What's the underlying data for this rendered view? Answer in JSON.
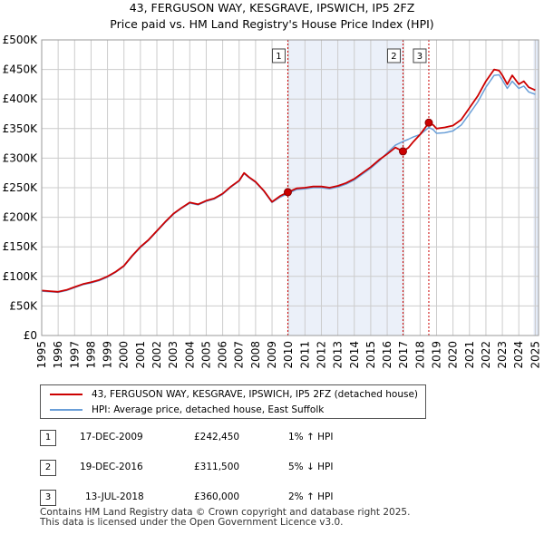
{
  "title": {
    "line1": "43, FERGUSON WAY, KESGRAVE, IPSWICH, IP5 2FZ",
    "line2": "Price paid vs. HM Land Registry's House Price Index (HPI)"
  },
  "colors": {
    "property": "#cc0000",
    "hpi": "#6a9fd8",
    "shade": "#dde6f5",
    "grid": "#cccccc",
    "marker": "#cc0000"
  },
  "chart_data": {
    "type": "line",
    "title": "Price paid vs. HM Land Registry's House Price Index (HPI)",
    "ylabel": "",
    "xlabel": "",
    "xlim": [
      1995,
      2025.2
    ],
    "ylim": [
      0,
      500000
    ],
    "yticks": [
      {
        "v": 0,
        "label": "£0"
      },
      {
        "v": 50000,
        "label": "£50K"
      },
      {
        "v": 100000,
        "label": "£100K"
      },
      {
        "v": 150000,
        "label": "£150K"
      },
      {
        "v": 200000,
        "label": "£200K"
      },
      {
        "v": 250000,
        "label": "£250K"
      },
      {
        "v": 300000,
        "label": "£300K"
      },
      {
        "v": 350000,
        "label": "£350K"
      },
      {
        "v": 400000,
        "label": "£400K"
      },
      {
        "v": 450000,
        "label": "£450K"
      },
      {
        "v": 500000,
        "label": "£500K"
      }
    ],
    "xticks": [
      "1995",
      "1996",
      "1997",
      "1998",
      "1999",
      "2000",
      "2001",
      "2002",
      "2003",
      "2004",
      "2005",
      "2006",
      "2007",
      "2008",
      "2009",
      "2010",
      "2011",
      "2012",
      "2013",
      "2014",
      "2015",
      "2016",
      "2017",
      "2018",
      "2019",
      "2020",
      "2021",
      "2022",
      "2023",
      "2024",
      "2025"
    ],
    "series": [
      {
        "name": "43, FERGUSON WAY, KESGRAVE, IPSWICH, IP5 2FZ (detached house)",
        "color": "#cc0000",
        "x": [
          1995.0,
          1995.5,
          1996.0,
          1996.5,
          1997.0,
          1997.5,
          1998.0,
          1998.5,
          1999.0,
          1999.5,
          2000.0,
          2000.5,
          2001.0,
          2001.5,
          2002.0,
          2002.5,
          2003.0,
          2003.5,
          2004.0,
          2004.5,
          2005.0,
          2005.5,
          2006.0,
          2006.5,
          2007.0,
          2007.3,
          2007.6,
          2008.0,
          2008.5,
          2009.0,
          2009.5,
          2009.96,
          2010.5,
          2011.0,
          2011.5,
          2012.0,
          2012.5,
          2013.0,
          2013.5,
          2014.0,
          2014.5,
          2015.0,
          2015.5,
          2016.0,
          2016.5,
          2016.96,
          2017.3,
          2017.6,
          2018.0,
          2018.53,
          2018.8,
          2019.0,
          2019.5,
          2020.0,
          2020.5,
          2021.0,
          2021.5,
          2022.0,
          2022.5,
          2022.8,
          2023.0,
          2023.3,
          2023.6,
          2024.0,
          2024.3,
          2024.6,
          2025.0
        ],
        "y": [
          76000,
          75000,
          74000,
          77000,
          82000,
          87000,
          90000,
          94000,
          100000,
          108000,
          118000,
          135000,
          150000,
          162000,
          177000,
          192000,
          206000,
          216000,
          225000,
          222000,
          228000,
          232000,
          240000,
          252000,
          262000,
          275000,
          268000,
          260000,
          245000,
          226000,
          236000,
          242450,
          249000,
          250000,
          252000,
          252000,
          250000,
          253000,
          258000,
          265000,
          275000,
          285000,
          297000,
          307000,
          318000,
          311500,
          318000,
          328000,
          340000,
          360000,
          356000,
          350000,
          352000,
          355000,
          365000,
          385000,
          405000,
          430000,
          450000,
          448000,
          440000,
          425000,
          440000,
          425000,
          430000,
          420000,
          415000
        ]
      },
      {
        "name": "HPI: Average price, detached house, East Suffolk",
        "color": "#6a9fd8",
        "x": [
          1995.0,
          1995.5,
          1996.0,
          1996.5,
          1997.0,
          1997.5,
          1998.0,
          1998.5,
          1999.0,
          1999.5,
          2000.0,
          2000.5,
          2001.0,
          2001.5,
          2002.0,
          2002.5,
          2003.0,
          2003.5,
          2004.0,
          2004.5,
          2005.0,
          2005.5,
          2006.0,
          2006.5,
          2007.0,
          2007.3,
          2007.6,
          2008.0,
          2008.5,
          2009.0,
          2009.5,
          2009.96,
          2010.5,
          2011.0,
          2011.5,
          2012.0,
          2012.5,
          2013.0,
          2013.5,
          2014.0,
          2014.5,
          2015.0,
          2015.5,
          2016.0,
          2016.5,
          2016.96,
          2017.3,
          2017.6,
          2018.0,
          2018.53,
          2018.8,
          2019.0,
          2019.5,
          2020.0,
          2020.5,
          2021.0,
          2021.5,
          2022.0,
          2022.5,
          2022.8,
          2023.0,
          2023.3,
          2023.6,
          2024.0,
          2024.3,
          2024.6,
          2025.0
        ],
        "y": [
          75000,
          74000,
          73000,
          76000,
          81000,
          86000,
          89000,
          93000,
          99000,
          107000,
          117000,
          134000,
          149000,
          161000,
          176000,
          191000,
          205000,
          215000,
          224000,
          221000,
          227000,
          231000,
          239000,
          251000,
          261000,
          274000,
          267000,
          259000,
          244000,
          225000,
          234000,
          240000,
          247000,
          248000,
          250000,
          250000,
          248000,
          251000,
          256000,
          263000,
          273000,
          283000,
          295000,
          309000,
          322000,
          328000,
          332000,
          336000,
          340000,
          352000,
          348000,
          342000,
          343000,
          346000,
          356000,
          375000,
          395000,
          420000,
          440000,
          441000,
          432000,
          418000,
          430000,
          418000,
          422000,
          412000,
          408000
        ]
      }
    ],
    "sales": [
      {
        "n": "1",
        "date": "17-DEC-2009",
        "x": 2009.96,
        "price": 242450,
        "price_label": "£242,450",
        "hpi": "1% ↑ HPI"
      },
      {
        "n": "2",
        "date": "19-DEC-2016",
        "x": 2016.96,
        "price": 311500,
        "price_label": "£311,500",
        "hpi": "5% ↓ HPI"
      },
      {
        "n": "3",
        "date": "13-JUL-2018",
        "x": 2018.53,
        "price": 360000,
        "price_label": "£360,000",
        "hpi": "2% ↑ HPI"
      }
    ]
  },
  "legend": {
    "property_label": "43, FERGUSON WAY, KESGRAVE, IPSWICH, IP5 2FZ (detached house)",
    "hpi_label": "HPI: Average price, detached house, East Suffolk"
  },
  "footer": {
    "line1": "Contains HM Land Registry data © Crown copyright and database right 2025.",
    "line2": "This data is licensed under the Open Government Licence v3.0."
  }
}
